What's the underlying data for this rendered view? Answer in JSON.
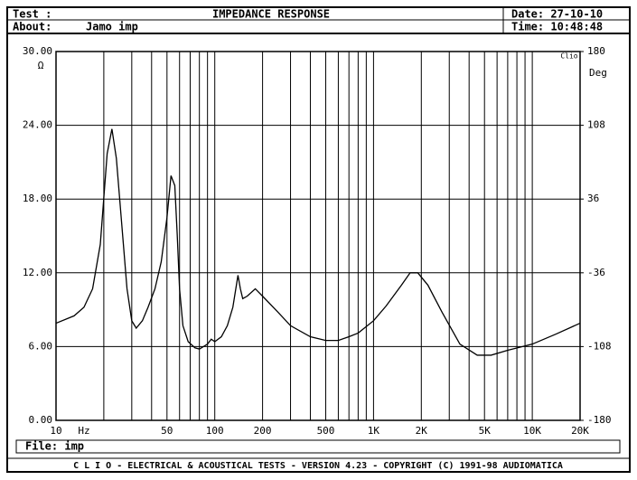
{
  "header": {
    "test": "Test :",
    "about": "About:",
    "about_value": "Jamo imp",
    "date": "Date: 27-10-10",
    "time": "Time: 10:48:48"
  },
  "footer": {
    "file": "File: imp",
    "credits": "C L I O  -  ELECTRICAL & ACOUSTICAL TESTS  -  VERSION 4.23  -  COPYRIGHT (C) 1991-98 AUDIOMATICA"
  },
  "chart_data": {
    "type": "line",
    "title": "IMPEDANCE RESPONSE",
    "annotation": "Clio",
    "xlabel": "Hz",
    "ylabel": "Ω",
    "y2label": "Deg",
    "xscale": "log",
    "grid": true,
    "color": "#000000",
    "x": [
      10,
      13,
      15,
      17,
      19,
      21,
      22.5,
      24,
      26,
      28,
      30,
      32,
      35,
      38,
      42,
      46,
      50,
      53,
      56,
      58,
      60,
      63,
      68,
      75,
      80,
      90,
      95,
      100,
      110,
      120,
      130,
      140,
      145,
      150,
      160,
      180,
      200,
      250,
      300,
      400,
      500,
      600,
      700,
      800,
      1000,
      1200,
      1500,
      1700,
      1900,
      2200,
      2700,
      3500,
      4500,
      5500,
      7000,
      10000,
      14000,
      20000
    ],
    "values": [
      7.9,
      8.5,
      9.2,
      10.7,
      14.3,
      21.7,
      23.7,
      21.3,
      15.8,
      10.7,
      8.1,
      7.5,
      8.1,
      9.2,
      10.7,
      12.9,
      16.5,
      19.9,
      19.1,
      15.1,
      10.7,
      7.7,
      6.4,
      5.9,
      5.8,
      6.2,
      6.6,
      6.4,
      6.8,
      7.7,
      9.2,
      11.8,
      10.7,
      9.9,
      10.1,
      10.7,
      10.1,
      8.8,
      7.7,
      6.8,
      6.5,
      6.5,
      6.8,
      7.1,
      8.1,
      9.3,
      11.0,
      12.0,
      12.0,
      11.0,
      8.8,
      6.2,
      5.3,
      5.3,
      5.7,
      6.2,
      7.0,
      7.9
    ],
    "xlim": [
      10,
      20000
    ],
    "xticks": [
      10,
      50,
      100,
      200,
      500,
      {
        "value": 1000,
        "label": "1K"
      },
      {
        "value": 2000,
        "label": "2K"
      },
      {
        "value": 5000,
        "label": "5K"
      },
      {
        "value": 10000,
        "label": "10K"
      },
      {
        "value": 20000,
        "label": "20K"
      }
    ],
    "minor_xticks": [
      20,
      30,
      40,
      60,
      70,
      80,
      90,
      300,
      400,
      600,
      700,
      800,
      900,
      3000,
      4000,
      6000,
      7000,
      8000,
      9000
    ],
    "ylim": [
      0,
      30
    ],
    "yticks": [
      {
        "value": 0,
        "label": "0.00"
      },
      {
        "value": 6,
        "label": "6.00"
      },
      {
        "value": 12,
        "label": "12.00"
      },
      {
        "value": 18,
        "label": "18.00"
      },
      {
        "value": 24,
        "label": "24.00"
      },
      {
        "value": 30,
        "label": "30.00"
      }
    ],
    "y2lim": [
      -180,
      180
    ],
    "y2ticks": [
      -180,
      -108,
      -36,
      36,
      108,
      180
    ]
  }
}
